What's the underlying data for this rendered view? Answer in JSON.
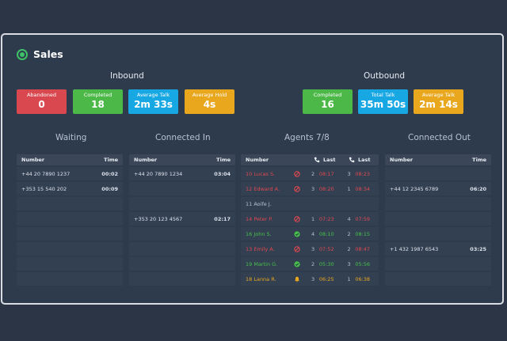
{
  "header": {
    "title": "Sales"
  },
  "inbound": {
    "title": "Inbound",
    "stats": [
      {
        "label": "Abandoned",
        "value": "0",
        "color": "#d9474f"
      },
      {
        "label": "Completed",
        "value": "18",
        "color": "#4cb848"
      },
      {
        "label": "Average Talk",
        "value": "2m 33s",
        "color": "#17a7e3"
      },
      {
        "label": "Average Hold",
        "value": "4s",
        "color": "#e9a71e"
      }
    ]
  },
  "outbound": {
    "title": "Outbound",
    "stats": [
      {
        "label": "Completed",
        "value": "16",
        "color": "#4cb848"
      },
      {
        "label": "Total Talk",
        "value": "35m 50s",
        "color": "#17a7e3"
      },
      {
        "label": "Average Talk",
        "value": "2m 14s",
        "color": "#e9a71e"
      }
    ]
  },
  "waiting": {
    "title": "Waiting",
    "headers": {
      "number": "Number",
      "time": "Time"
    },
    "rows": [
      {
        "number": "+44 20 7890 1237",
        "time": "00:02"
      },
      {
        "number": "+353 15 540 202",
        "time": "00:09"
      },
      {
        "number": "",
        "time": ""
      },
      {
        "number": "",
        "time": ""
      },
      {
        "number": "",
        "time": ""
      },
      {
        "number": "",
        "time": ""
      },
      {
        "number": "",
        "time": ""
      },
      {
        "number": "",
        "time": ""
      }
    ]
  },
  "connected_in": {
    "title": "Connected In",
    "headers": {
      "number": "Number",
      "time": "Time"
    },
    "rows": [
      {
        "number": "+44 20 7890 1234",
        "time": "03:04"
      },
      {
        "number": "",
        "time": ""
      },
      {
        "number": "",
        "time": ""
      },
      {
        "number": "+353 20 123 4567",
        "time": "02:17"
      },
      {
        "number": "",
        "time": ""
      },
      {
        "number": "",
        "time": ""
      },
      {
        "number": "",
        "time": ""
      },
      {
        "number": "",
        "time": ""
      }
    ]
  },
  "agents": {
    "title": "Agents 7/8",
    "headers": {
      "number": "Number",
      "last1": "Last",
      "last2": "Last"
    },
    "status_colors": {
      "busy": "#e0474f",
      "available": "#47c148",
      "away": "#e9a71e",
      "offline": "#b8c2cf"
    },
    "rows": [
      {
        "name": "10 Lucas S.",
        "status": "busy",
        "icon": "blocked-icon",
        "count1": "2",
        "time1": "08:17",
        "count2": "3",
        "time2": "08:23"
      },
      {
        "name": "12 Edward A.",
        "status": "busy",
        "icon": "blocked-icon",
        "count1": "3",
        "time1": "08:20",
        "count2": "1",
        "time2": "08:34"
      },
      {
        "name": "11 Aoife J.",
        "status": "offline",
        "icon": "",
        "count1": "",
        "time1": "",
        "count2": "",
        "time2": ""
      },
      {
        "name": "14 Peter P.",
        "status": "busy",
        "icon": "blocked-icon",
        "count1": "1",
        "time1": "07:23",
        "count2": "4",
        "time2": "07:59"
      },
      {
        "name": "16 John S.",
        "status": "available",
        "icon": "check-icon",
        "count1": "4",
        "time1": "08:10",
        "count2": "2",
        "time2": "08:15"
      },
      {
        "name": "13 Emily A.",
        "status": "busy",
        "icon": "blocked-icon",
        "count1": "3",
        "time1": "07:52",
        "count2": "2",
        "time2": "08:47"
      },
      {
        "name": "19 Martin G.",
        "status": "available",
        "icon": "check-icon",
        "count1": "2",
        "time1": "05:30",
        "count2": "3",
        "time2": "05:56"
      },
      {
        "name": "18 Lanna R.",
        "status": "away",
        "icon": "bell-icon",
        "count1": "3",
        "time1": "06:25",
        "count2": "1",
        "time2": "06:38"
      }
    ]
  },
  "connected_out": {
    "title": "Connected Out",
    "headers": {
      "number": "Number",
      "time": "Time"
    },
    "rows": [
      {
        "number": "",
        "time": ""
      },
      {
        "number": "+44 12 2345 6789",
        "time": "06:20"
      },
      {
        "number": "",
        "time": ""
      },
      {
        "number": "",
        "time": ""
      },
      {
        "number": "",
        "time": ""
      },
      {
        "number": "+1 432 1987 6543",
        "time": "03:25"
      },
      {
        "number": "",
        "time": ""
      },
      {
        "number": "",
        "time": ""
      }
    ]
  }
}
